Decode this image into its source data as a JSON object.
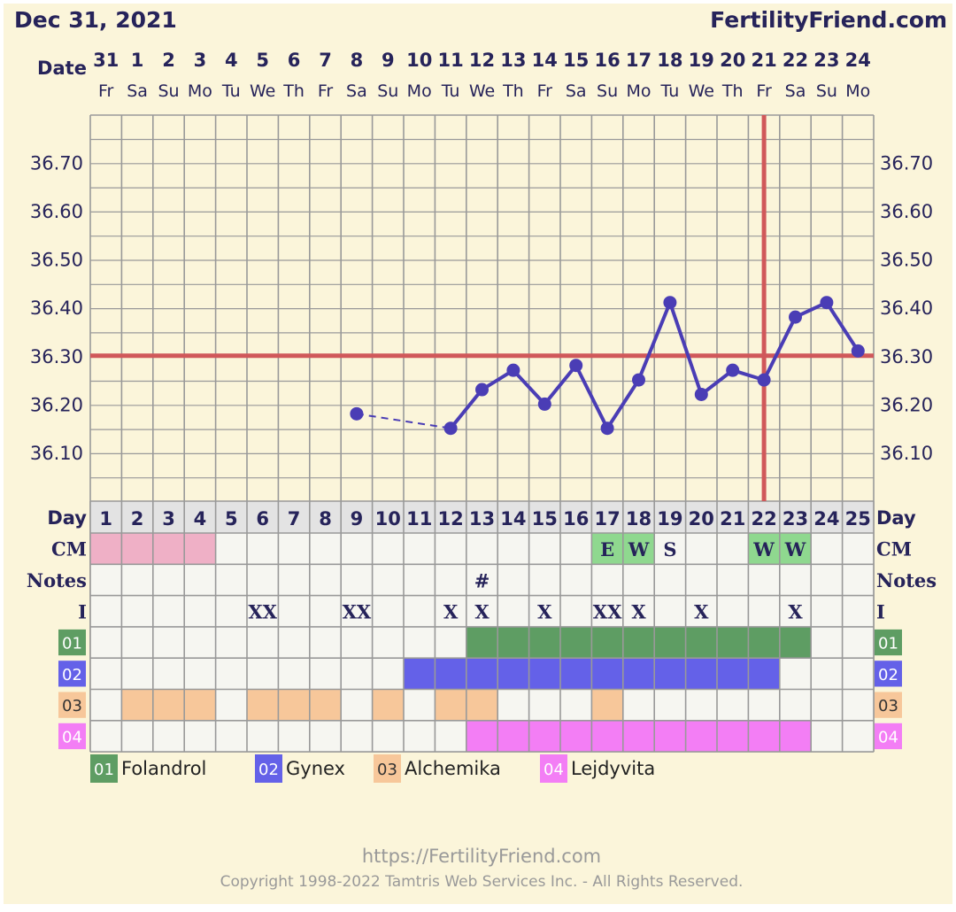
{
  "header": {
    "date": "Dec 31, 2021",
    "brand": "FertilityFriend.com",
    "date_label": "Date"
  },
  "footer": {
    "url": "https://FertilityFriend.com",
    "copyright": "Copyright 1998-2022 Tamtris Web Services Inc. - All Rights Reserved."
  },
  "colors": {
    "background": "#fbf5da",
    "grid": "#999999",
    "chart_area": "#fbf5da",
    "table_area": "#f6f6f1",
    "cover_line": "#d0585a",
    "line": "#4a3db5",
    "text": "#26235a",
    "day_row": "#e3e3e3",
    "cm_menses": "#efb0c6",
    "cm_fertile": "#8fd88f"
  },
  "chart_data": {
    "type": "line",
    "title": "",
    "xlabel": "Day",
    "ylabel": "",
    "ylim": [
      36.0,
      36.8
    ],
    "yticks": [
      "36.10",
      "36.20",
      "36.30",
      "36.40",
      "36.50",
      "36.60",
      "36.70"
    ],
    "cover_line": 36.3,
    "ovulation_day": 22,
    "dates": [
      "31",
      "1",
      "2",
      "3",
      "4",
      "5",
      "6",
      "7",
      "8",
      "9",
      "10",
      "11",
      "12",
      "13",
      "14",
      "15",
      "16",
      "17",
      "18",
      "19",
      "20",
      "21",
      "22",
      "23",
      "24"
    ],
    "weekdays": [
      "Fr",
      "Sa",
      "Su",
      "Mo",
      "Tu",
      "We",
      "Th",
      "Fr",
      "Sa",
      "Su",
      "Mo",
      "Tu",
      "We",
      "Th",
      "Fr",
      "Sa",
      "Su",
      "Mo",
      "Tu",
      "We",
      "Th",
      "Fr",
      "Sa",
      "Su",
      "Mo"
    ],
    "cycle_days": [
      1,
      2,
      3,
      4,
      5,
      6,
      7,
      8,
      9,
      10,
      11,
      12,
      13,
      14,
      15,
      16,
      17,
      18,
      19,
      20,
      21,
      22,
      23,
      24,
      25
    ],
    "series": [
      {
        "points": [
          {
            "day": 9,
            "temp": 36.18
          },
          {
            "day": 12,
            "temp": 36.15
          },
          {
            "day": 13,
            "temp": 36.23
          },
          {
            "day": 14,
            "temp": 36.27
          },
          {
            "day": 15,
            "temp": 36.2
          },
          {
            "day": 16,
            "temp": 36.28
          },
          {
            "day": 17,
            "temp": 36.15
          },
          {
            "day": 18,
            "temp": 36.25
          },
          {
            "day": 19,
            "temp": 36.41
          },
          {
            "day": 20,
            "temp": 36.22
          },
          {
            "day": 21,
            "temp": 36.27
          },
          {
            "day": 22,
            "temp": 36.25
          },
          {
            "day": 23,
            "temp": 36.38
          },
          {
            "day": 24,
            "temp": 36.41
          },
          {
            "day": 25,
            "temp": 36.31
          }
        ],
        "dashed_segments": [
          [
            9,
            12
          ]
        ]
      }
    ],
    "rows": {
      "day_label": "Day",
      "cm_label": "CM",
      "notes_label": "Notes",
      "i_label": "I",
      "cm_menses_days": [
        1,
        2,
        3,
        4
      ],
      "cm": [
        {
          "day": 17,
          "text": "E",
          "fertile": true
        },
        {
          "day": 18,
          "text": "W",
          "fertile": true
        },
        {
          "day": 19,
          "text": "S",
          "fertile": false
        },
        {
          "day": 22,
          "text": "W",
          "fertile": true
        },
        {
          "day": 23,
          "text": "W",
          "fertile": true
        }
      ],
      "notes": [
        {
          "day": 13,
          "text": "#"
        }
      ],
      "intercourse": [
        {
          "day": 6,
          "text": "XX"
        },
        {
          "day": 9,
          "text": "XX"
        },
        {
          "day": 12,
          "text": "X"
        },
        {
          "day": 13,
          "text": "X"
        },
        {
          "day": 15,
          "text": "X"
        },
        {
          "day": 17,
          "text": "XX"
        },
        {
          "day": 18,
          "text": "X"
        },
        {
          "day": 20,
          "text": "X"
        },
        {
          "day": 23,
          "text": "X"
        }
      ]
    },
    "medications": [
      {
        "code": "01",
        "name": "Folandrol",
        "color": "#5e9d63",
        "days": [
          13,
          14,
          15,
          16,
          17,
          18,
          19,
          20,
          21,
          22,
          23
        ]
      },
      {
        "code": "02",
        "name": "Gynex",
        "color": "#6461e8",
        "days": [
          11,
          12,
          13,
          14,
          15,
          16,
          17,
          18,
          19,
          20,
          21,
          22
        ]
      },
      {
        "code": "03",
        "name": "Alchemika",
        "color": "#f7c79a",
        "days": [
          2,
          3,
          4,
          6,
          7,
          8,
          10,
          12,
          13,
          17
        ]
      },
      {
        "code": "04",
        "name": "Lejdyvita",
        "color": "#f37ef5",
        "days": [
          13,
          14,
          15,
          16,
          17,
          18,
          19,
          20,
          21,
          22,
          23
        ]
      }
    ]
  }
}
